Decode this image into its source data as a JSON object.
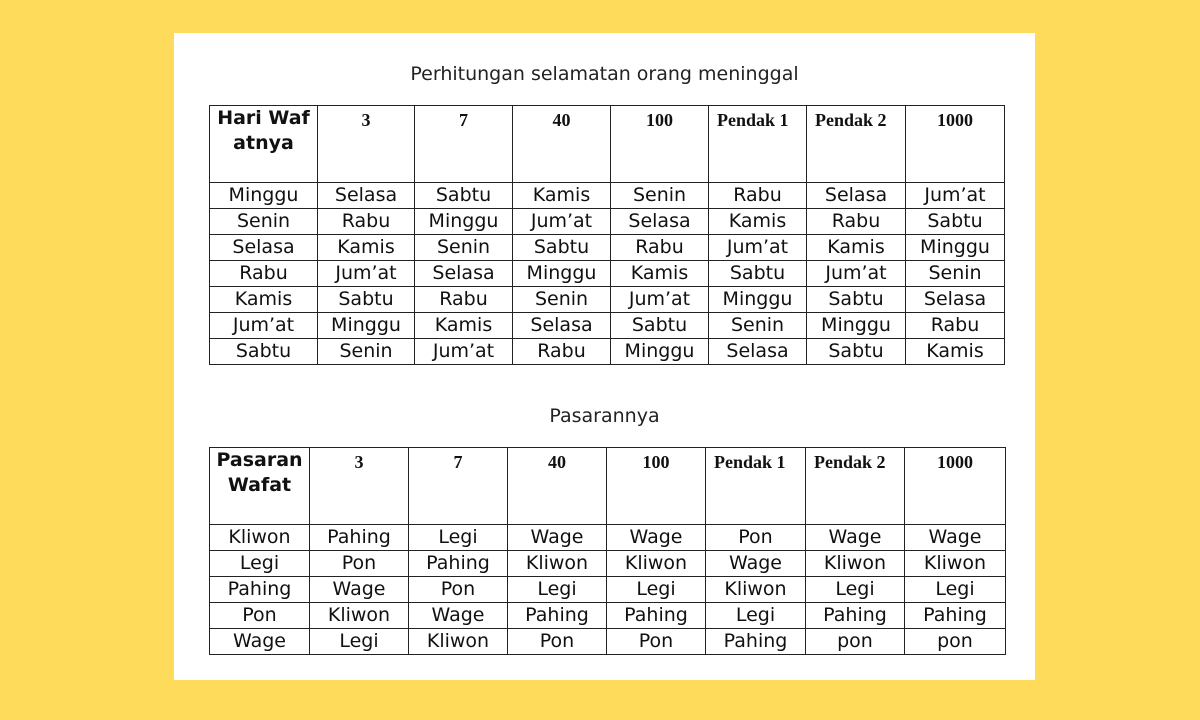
{
  "tables": [
    {
      "title": "Perhitungan selamatan orang meninggal",
      "headers": [
        "Hari Wafatnya",
        "3",
        "7",
        "40",
        "100",
        "Pendak 1",
        "Pendak 2",
        "1000"
      ],
      "rows": [
        [
          "Minggu",
          "Selasa",
          "Sabtu",
          "Kamis",
          "Senin",
          "Rabu",
          "Selasa",
          "Jum’at"
        ],
        [
          "Senin",
          "Rabu",
          "Minggu",
          "Jum’at",
          "Selasa",
          "Kamis",
          "Rabu",
          "Sabtu"
        ],
        [
          "Selasa",
          "Kamis",
          "Senin",
          "Sabtu",
          "Rabu",
          "Jum’at",
          "Kamis",
          "Minggu"
        ],
        [
          "Rabu",
          "Jum’at",
          "Selasa",
          "Minggu",
          "Kamis",
          "Sabtu",
          "Jum’at",
          "Senin"
        ],
        [
          "Kamis",
          "Sabtu",
          "Rabu",
          "Senin",
          "Jum’at",
          "Minggu",
          "Sabtu",
          "Selasa"
        ],
        [
          "Jum’at",
          "Minggu",
          "Kamis",
          "Selasa",
          "Sabtu",
          "Senin",
          "Minggu",
          "Rabu"
        ],
        [
          "Sabtu",
          "Senin",
          "Jum’at",
          "Rabu",
          "Minggu",
          "Selasa",
          "Sabtu",
          "Kamis"
        ]
      ]
    },
    {
      "title": "Pasarannya",
      "headers": [
        "Pasaran Wafat",
        "3",
        "7",
        "40",
        "100",
        "Pendak 1",
        "Pendak 2",
        "1000"
      ],
      "rows": [
        [
          "Kliwon",
          "Pahing",
          "Legi",
          "Wage",
          "Wage",
          "Pon",
          "Wage",
          "Wage"
        ],
        [
          "Legi",
          "Pon",
          "Pahing",
          "Kliwon",
          "Kliwon",
          "Wage",
          "Kliwon",
          "Kliwon"
        ],
        [
          "Pahing",
          "Wage",
          "Pon",
          "Legi",
          "Legi",
          "Kliwon",
          "Legi",
          "Legi"
        ],
        [
          "Pon",
          "Kliwon",
          "Wage",
          "Pahing",
          "Pahing",
          "Legi",
          "Pahing",
          "Pahing"
        ],
        [
          "Wage",
          "Legi",
          "Kliwon",
          "Pon",
          "Pon",
          "Pahing",
          "pon",
          "pon"
        ]
      ]
    }
  ]
}
